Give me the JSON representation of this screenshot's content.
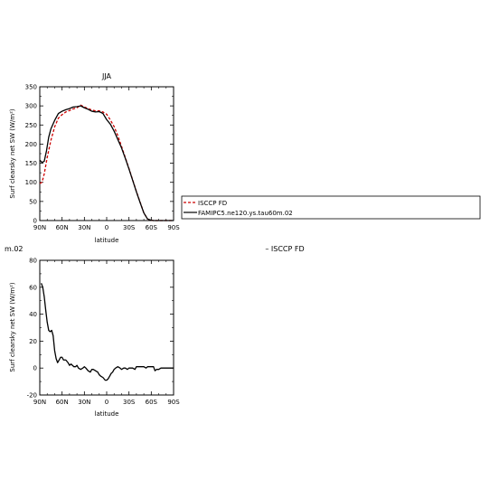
{
  "chart_data": [
    {
      "type": "line",
      "title": "JJA",
      "xlabel": "latitude",
      "ylabel": "Surf clearsky net SW (W/m²)",
      "xlim": [
        90,
        -90
      ],
      "ylim": [
        0,
        350
      ],
      "x_ticks": [
        90,
        60,
        30,
        0,
        -30,
        -60,
        -90
      ],
      "x_tick_labels": [
        "90N",
        "60N",
        "30N",
        "0",
        "30S",
        "60S",
        "90S"
      ],
      "y_ticks": [
        0,
        50,
        100,
        150,
        200,
        250,
        300,
        350
      ],
      "y_tick_labels": [
        "0",
        "50",
        "100",
        "150",
        "200",
        "250",
        "300",
        "350"
      ],
      "grid": false,
      "legend": {
        "position": "right",
        "entries": [
          "ISCCP FD",
          "FAMIPC5.ne120.ys.tau60m.02"
        ]
      },
      "series": [
        {
          "name": "ISCCP FD",
          "color": "#cc0000",
          "dash": "dashed",
          "x": [
            90,
            87,
            84,
            80,
            75,
            70,
            65,
            60,
            55,
            50,
            45,
            40,
            35,
            30,
            25,
            20,
            15,
            10,
            5,
            0,
            -5,
            -10,
            -15,
            -20,
            -25,
            -30,
            -35,
            -40,
            -45,
            -50,
            -55,
            -60,
            -63,
            -66,
            -70,
            -75,
            -80,
            -85,
            -90
          ],
          "values": [
            97,
            100,
            122,
            165,
            210,
            245,
            268,
            277,
            284,
            288,
            292,
            295,
            302,
            297,
            293,
            289,
            287,
            287,
            284,
            278,
            263,
            246,
            222,
            194,
            165,
            136,
            106,
            76,
            48,
            20,
            4,
            1,
            0,
            0,
            0,
            0,
            0,
            0,
            0
          ]
        },
        {
          "name": "FAMIPC5.ne120.ys.tau60m.02",
          "color": "#000000",
          "dash": "solid",
          "x": [
            90,
            87,
            84,
            81,
            78,
            75,
            70,
            65,
            60,
            55,
            50,
            45,
            40,
            35,
            30,
            25,
            20,
            15,
            10,
            5,
            0,
            -5,
            -10,
            -15,
            -20,
            -25,
            -30,
            -35,
            -40,
            -45,
            -50,
            -55,
            -60,
            -63,
            -66,
            -70,
            -75,
            -80,
            -85,
            -90
          ],
          "values": [
            158,
            152,
            155,
            182,
            218,
            240,
            262,
            280,
            286,
            290,
            293,
            297,
            298,
            300,
            295,
            291,
            286,
            284,
            285,
            280,
            264,
            252,
            234,
            212,
            190,
            163,
            135,
            105,
            75,
            47,
            20,
            4,
            1,
            0,
            0,
            0,
            0,
            0,
            0,
            0
          ]
        }
      ]
    },
    {
      "type": "line",
      "title": "",
      "subtitle_left": "m.02",
      "subtitle_right": "– ISCCP FD",
      "xlabel": "latitude",
      "ylabel": "Surf clearsky net SW (W/m²)",
      "xlim": [
        90,
        -90
      ],
      "ylim": [
        -20,
        80
      ],
      "x_ticks": [
        90,
        60,
        30,
        0,
        -30,
        -60,
        -90
      ],
      "x_tick_labels": [
        "90N",
        "60N",
        "30N",
        "0",
        "30S",
        "60S",
        "90S"
      ],
      "y_ticks": [
        -20,
        0,
        20,
        40,
        60,
        80
      ],
      "y_tick_labels": [
        "-20",
        "0",
        "20",
        "40",
        "60",
        "80"
      ],
      "grid": false,
      "series": [
        {
          "color": "#000000",
          "dash": "solid",
          "x": [
            88,
            86,
            84,
            82,
            80,
            78,
            76,
            74,
            72,
            70,
            68,
            66,
            64,
            62,
            60,
            58,
            55,
            52,
            50,
            48,
            46,
            44,
            42,
            40,
            38,
            35,
            32,
            30,
            28,
            25,
            22,
            20,
            18,
            15,
            12,
            10,
            8,
            5,
            2,
            0,
            -2,
            -4,
            -6,
            -8,
            -10,
            -12,
            -15,
            -18,
            -20,
            -23,
            -25,
            -28,
            -30,
            -32,
            -35,
            -38,
            -40,
            -43,
            -45,
            -48,
            -50,
            -53,
            -55,
            -58,
            -60,
            -63,
            -65,
            -67,
            -70,
            -73,
            -75,
            -78,
            -80,
            -83,
            -85,
            -88,
            -90
          ],
          "values": [
            63,
            60,
            53,
            43,
            34,
            28,
            27,
            28,
            24,
            13,
            7,
            4,
            6,
            8,
            8,
            6,
            6,
            4,
            2,
            3,
            2,
            1,
            1,
            2,
            0,
            -1,
            0,
            1,
            0,
            -2,
            -3,
            -1,
            -1,
            -2,
            -3,
            -5,
            -6,
            -7,
            -9,
            -9,
            -8,
            -6,
            -4,
            -3,
            -1,
            0,
            1,
            0,
            -1,
            0,
            0,
            -1,
            0,
            0,
            0,
            -1,
            1,
            1,
            1,
            1,
            1,
            0,
            1,
            1,
            1,
            1,
            -2,
            -1,
            -1,
            0,
            0,
            0,
            0,
            0,
            0,
            0,
            0
          ]
        }
      ]
    }
  ]
}
